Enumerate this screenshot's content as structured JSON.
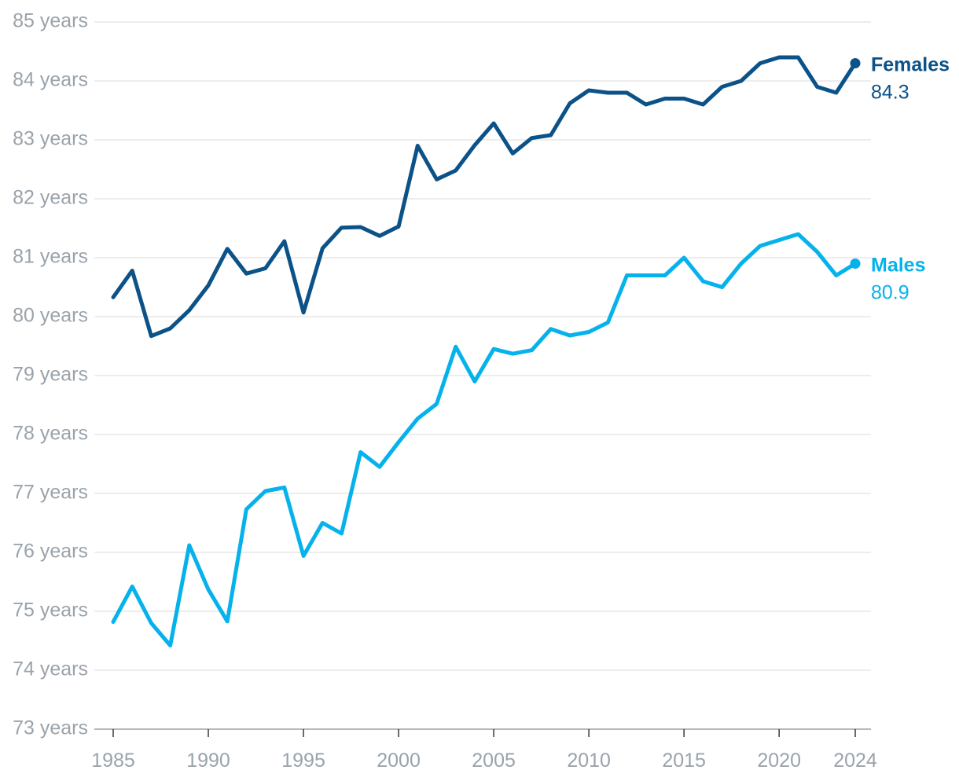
{
  "chart_data": {
    "type": "line",
    "title": "",
    "xlabel": "",
    "ylabel": "",
    "xlim": [
      1985,
      2024
    ],
    "ylim": [
      73,
      85
    ],
    "y_tick_values": [
      73,
      74,
      75,
      76,
      77,
      78,
      79,
      80,
      81,
      82,
      83,
      84,
      85
    ],
    "y_tick_labels": [
      "73 years",
      "74 years",
      "75 years",
      "76 years",
      "77 years",
      "78 years",
      "79 years",
      "80 years",
      "81 years",
      "82 years",
      "83 years",
      "84 years",
      "85 years"
    ],
    "x_tick_values": [
      1985,
      1990,
      1995,
      2000,
      2005,
      2010,
      2015,
      2020,
      2024
    ],
    "x_tick_labels": [
      "1985",
      "1990",
      "1995",
      "2000",
      "2005",
      "2010",
      "2015",
      "2020",
      "2024"
    ],
    "grid": "horizontal",
    "legend": "end-labels",
    "x": [
      1985,
      1986,
      1987,
      1988,
      1989,
      1990,
      1991,
      1992,
      1993,
      1994,
      1995,
      1996,
      1997,
      1998,
      1999,
      2000,
      2001,
      2002,
      2003,
      2004,
      2005,
      2006,
      2007,
      2008,
      2009,
      2010,
      2011,
      2012,
      2013,
      2014,
      2015,
      2016,
      2017,
      2018,
      2019,
      2020,
      2021,
      2022,
      2023,
      2024
    ],
    "series": [
      {
        "name": "Females",
        "end_label": "84.3",
        "color": "#0b5288",
        "values": [
          80.33,
          80.78,
          79.67,
          79.8,
          80.11,
          80.53,
          81.15,
          80.73,
          80.82,
          81.28,
          80.07,
          81.16,
          81.51,
          81.52,
          81.37,
          81.53,
          82.9,
          82.33,
          82.48,
          82.91,
          83.28,
          82.77,
          83.03,
          83.08,
          83.62,
          83.84,
          83.8,
          83.8,
          83.6,
          83.7,
          83.7,
          83.6,
          83.9,
          84.0,
          84.3,
          84.4,
          84.4,
          83.9,
          83.8,
          84.3
        ]
      },
      {
        "name": "Males",
        "end_label": "80.9",
        "color": "#05b2eb",
        "values": [
          74.82,
          75.42,
          74.8,
          74.42,
          76.12,
          75.37,
          74.83,
          76.73,
          77.04,
          77.1,
          75.94,
          76.5,
          76.32,
          77.7,
          77.45,
          77.87,
          78.27,
          78.52,
          79.49,
          78.9,
          79.45,
          79.37,
          79.43,
          79.79,
          79.68,
          79.74,
          79.9,
          80.7,
          80.7,
          80.7,
          81.0,
          80.6,
          80.5,
          80.9,
          81.2,
          81.3,
          81.4,
          81.1,
          80.7,
          80.9
        ]
      }
    ]
  }
}
